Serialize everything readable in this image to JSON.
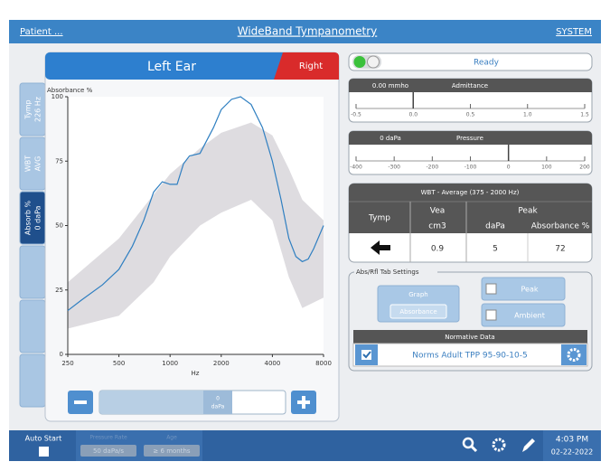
{
  "header": {
    "patient": "Patient ...",
    "title": "WideBand Tympanometry",
    "system": "SYSTEM"
  },
  "tabs": [
    [
      "Tymp",
      "226 Hz"
    ],
    [
      "WBT",
      "AVG"
    ],
    [
      "Absorb %",
      "0 daPa"
    ]
  ],
  "ear_tabs": {
    "left": "Left Ear",
    "right": "Right"
  },
  "chart_data": {
    "type": "line",
    "ylabel": "Absorbance %",
    "xlabel": "Hz",
    "x": [
      250,
      300,
      400,
      500,
      600,
      700,
      800,
      900,
      1000,
      1100,
      1200,
      1300,
      1500,
      1800,
      2000,
      2300,
      2600,
      3000,
      3500,
      4000,
      4500,
      5000,
      5500,
      6000,
      6500,
      7000,
      8000
    ],
    "values": [
      17,
      21,
      27,
      33,
      42,
      52,
      63,
      67,
      66,
      66,
      74,
      77,
      78,
      88,
      95,
      99,
      100,
      97,
      88,
      75,
      60,
      45,
      38,
      36,
      37,
      41,
      50
    ],
    "color": "#2f7fc1",
    "norm_band": {
      "x": [
        250,
        500,
        800,
        1000,
        1500,
        2000,
        3000,
        4000,
        5000,
        6000,
        8000
      ],
      "upper": [
        28,
        45,
        62,
        70,
        80,
        86,
        90,
        85,
        72,
        60,
        52
      ],
      "lower": [
        10,
        15,
        28,
        38,
        50,
        55,
        60,
        52,
        30,
        18,
        22
      ],
      "color": "#d8d6da"
    },
    "log_x": true,
    "xlim": [
      250,
      8000
    ],
    "xticks": [
      250,
      500,
      1000,
      2000,
      4000,
      8000
    ],
    "ylim": [
      0,
      100
    ],
    "yticks": [
      0,
      25,
      50,
      75,
      100
    ]
  },
  "slider": {
    "value": "0",
    "unit": "daPa"
  },
  "status": "Ready",
  "admittance": {
    "reading": "0.00 mmho",
    "title": "Admittance",
    "needle": 0,
    "lim": [
      -0.5,
      1.5
    ],
    "ticks": [
      {
        "value": -0.5,
        "label": "-0.5"
      },
      {
        "value": 0,
        "label": "0.0"
      },
      {
        "value": 0.5,
        "label": "0.5"
      },
      {
        "value": 1,
        "label": "1.0"
      },
      {
        "value": 1.5,
        "label": "1.5"
      }
    ]
  },
  "pressure": {
    "reading": "0 daPa",
    "title": "Pressure",
    "needle": 0,
    "lim": [
      -400,
      200
    ],
    "ticks": [
      -400,
      -300,
      -200,
      -100,
      0,
      100,
      200
    ]
  },
  "wbt_table": {
    "title": "WBT - Average (375 - 2000 Hz)",
    "tymp": "Tymp",
    "vea": "Vea",
    "vea_unit": "cm3",
    "peak": "Peak",
    "peak_pressure": "daPa",
    "peak_absorbance": "Absorbance %",
    "row": [
      0.9,
      5,
      72
    ]
  },
  "settings": {
    "title": "Abs/Rfl Tab Settings",
    "graph": "Graph",
    "graph_value": "Absorbance",
    "peak": "Peak",
    "ambient": "Ambient",
    "normative_title": "Normative Data",
    "norm": "Norms Adult TPP 95-90-10-5"
  },
  "footer": {
    "auto_start": "Auto Start",
    "pressure_rate_label": "Pressure Rate",
    "pressure_rate": "50 daPa/s",
    "age_label": "Age",
    "age": "≥ 6 months",
    "time": "4:03 PM",
    "date": "02-22-2022"
  }
}
